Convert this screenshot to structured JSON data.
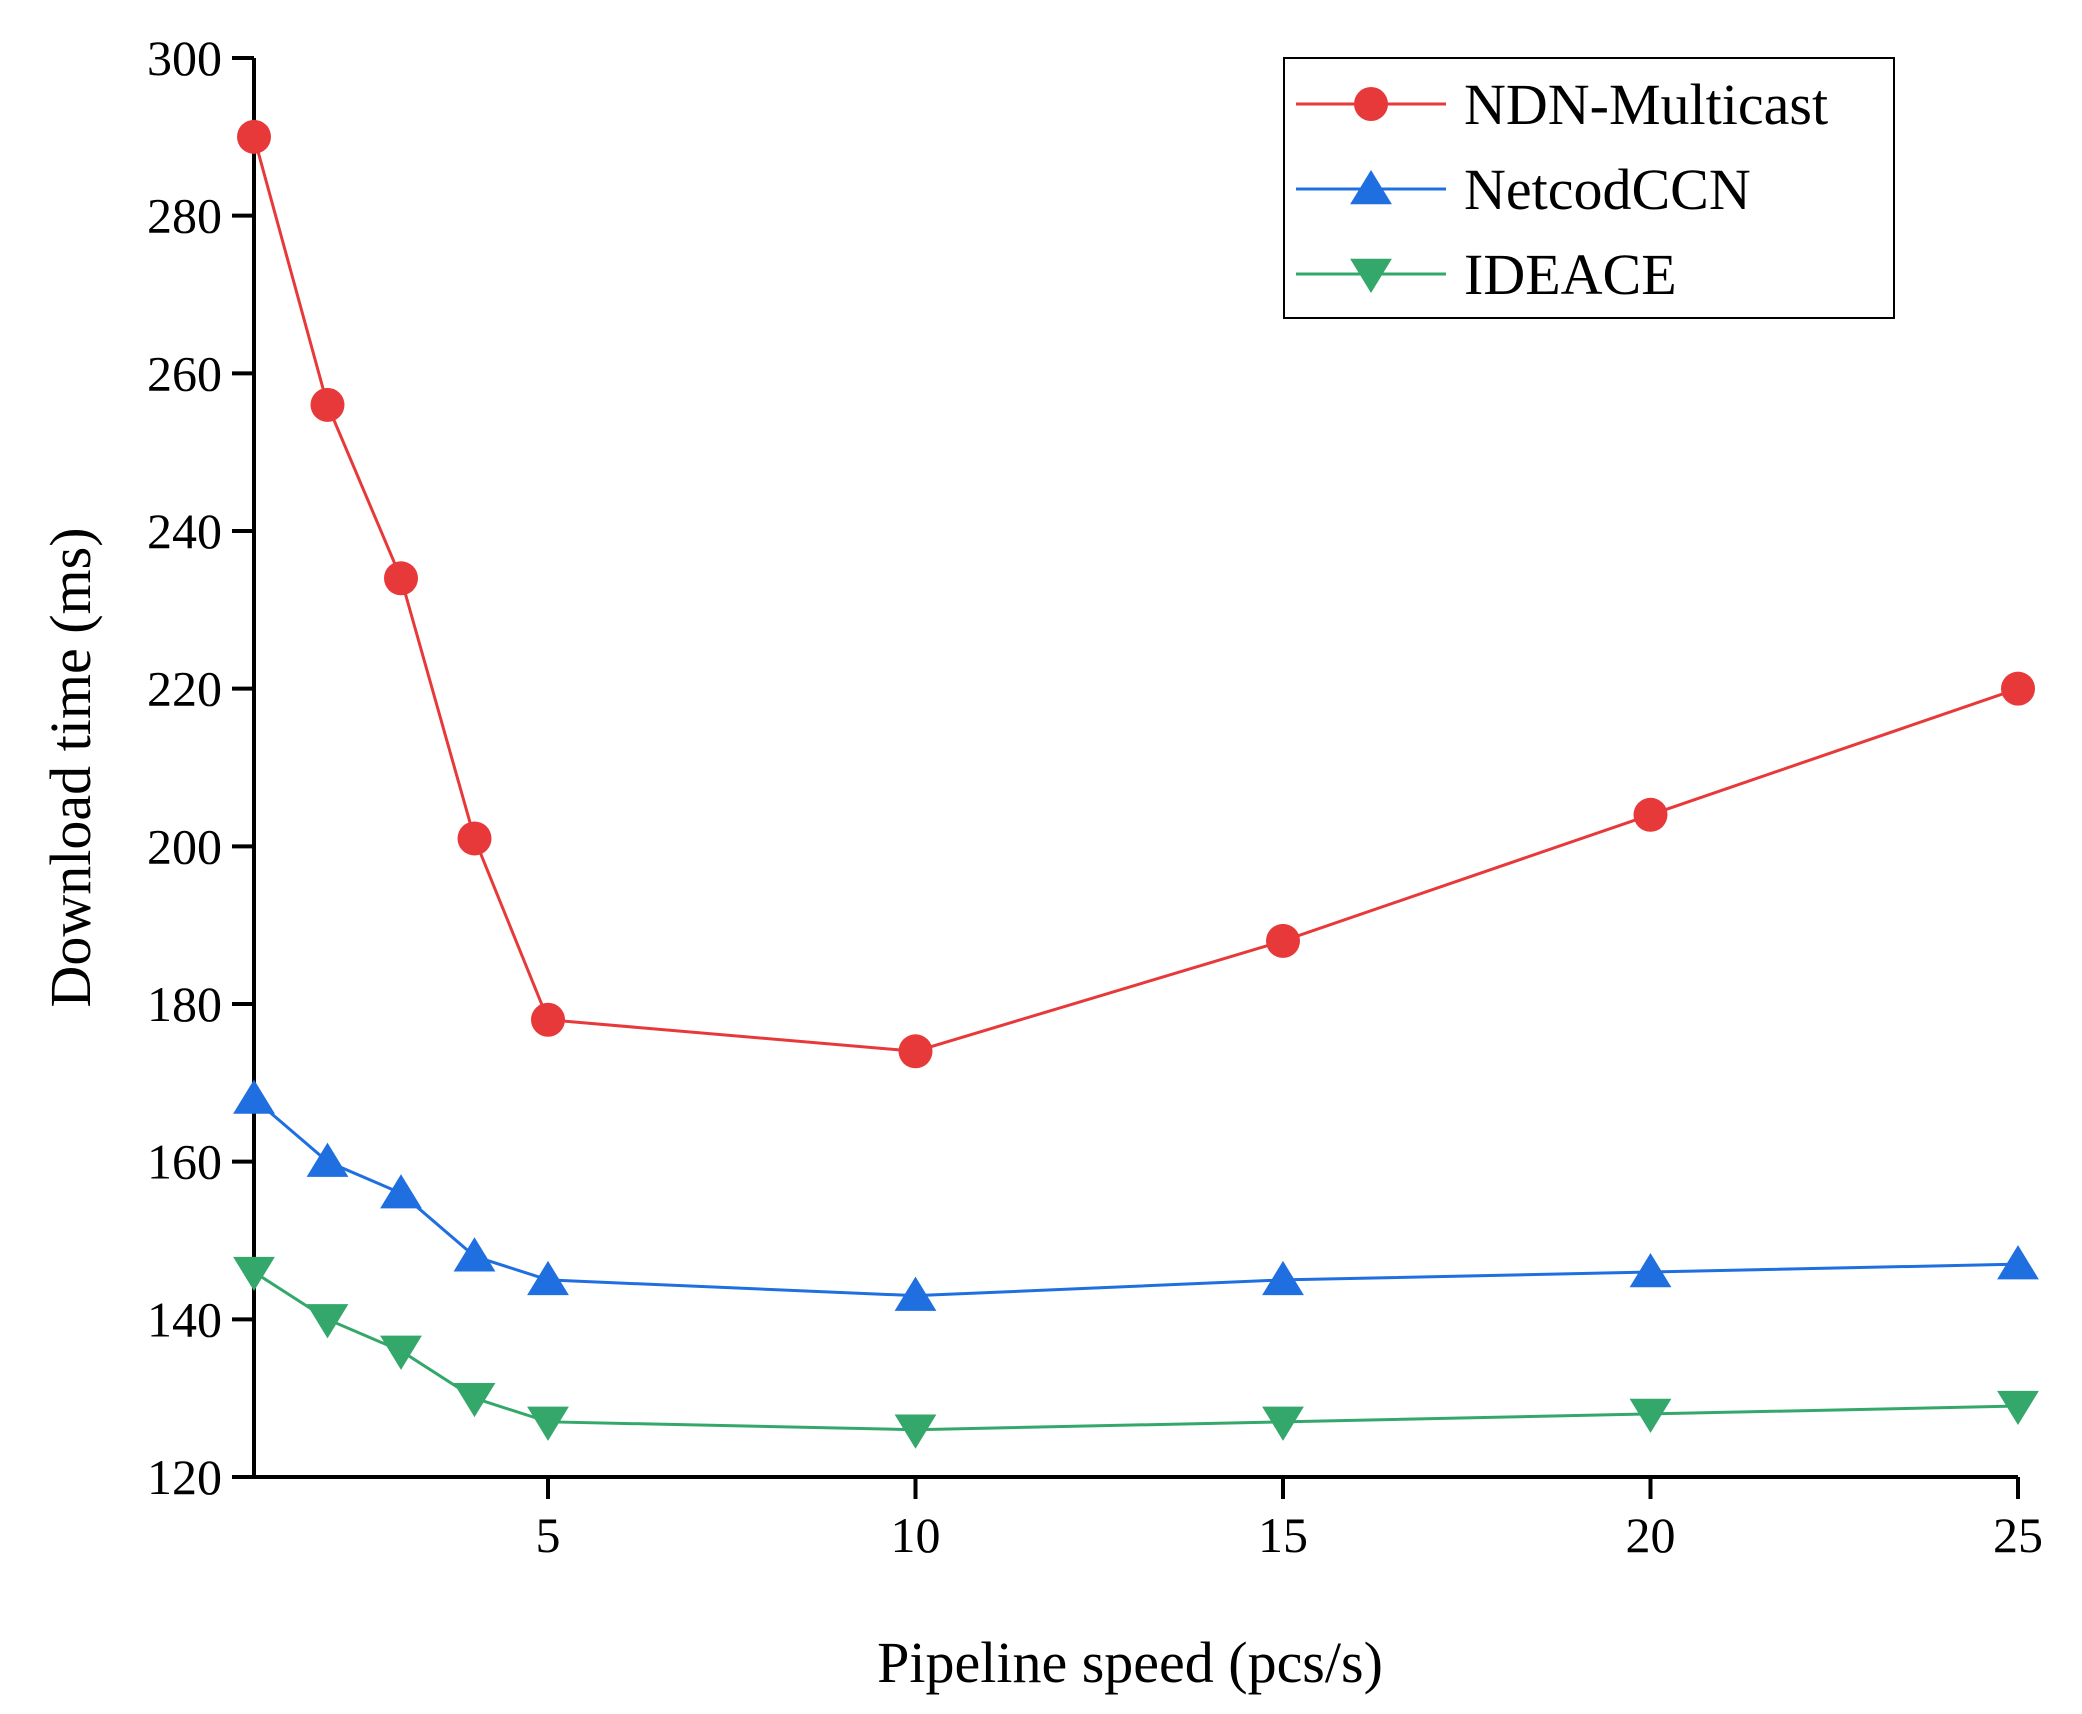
{
  "chart_data": {
    "type": "line",
    "title": "",
    "xlabel": "Pipeline speed (pcs/s)",
    "ylabel": "Download time (ms)",
    "xlim": [
      1,
      25
    ],
    "ylim": [
      120,
      300
    ],
    "xticks": [
      5,
      10,
      15,
      20,
      25
    ],
    "yticks": [
      120,
      140,
      160,
      180,
      200,
      220,
      240,
      260,
      280,
      300
    ],
    "grid": false,
    "legend_position": "top-right",
    "x": [
      1,
      2,
      3,
      4,
      5,
      10,
      15,
      20,
      25
    ],
    "series": [
      {
        "name": "NDN-Multicast",
        "marker": "circle",
        "color": "#e8393a",
        "values": [
          290,
          256,
          234,
          201,
          178,
          174,
          188,
          204,
          220
        ]
      },
      {
        "name": "NetcodCCN",
        "marker": "triangle-up",
        "color": "#1f6fe0",
        "values": [
          168,
          160,
          156,
          148,
          145,
          143,
          145,
          146,
          147
        ]
      },
      {
        "name": "IDEACE",
        "marker": "triangle-down",
        "color": "#33a86a",
        "values": [
          146,
          140,
          136,
          130,
          127,
          126,
          127,
          128,
          129
        ]
      }
    ]
  }
}
